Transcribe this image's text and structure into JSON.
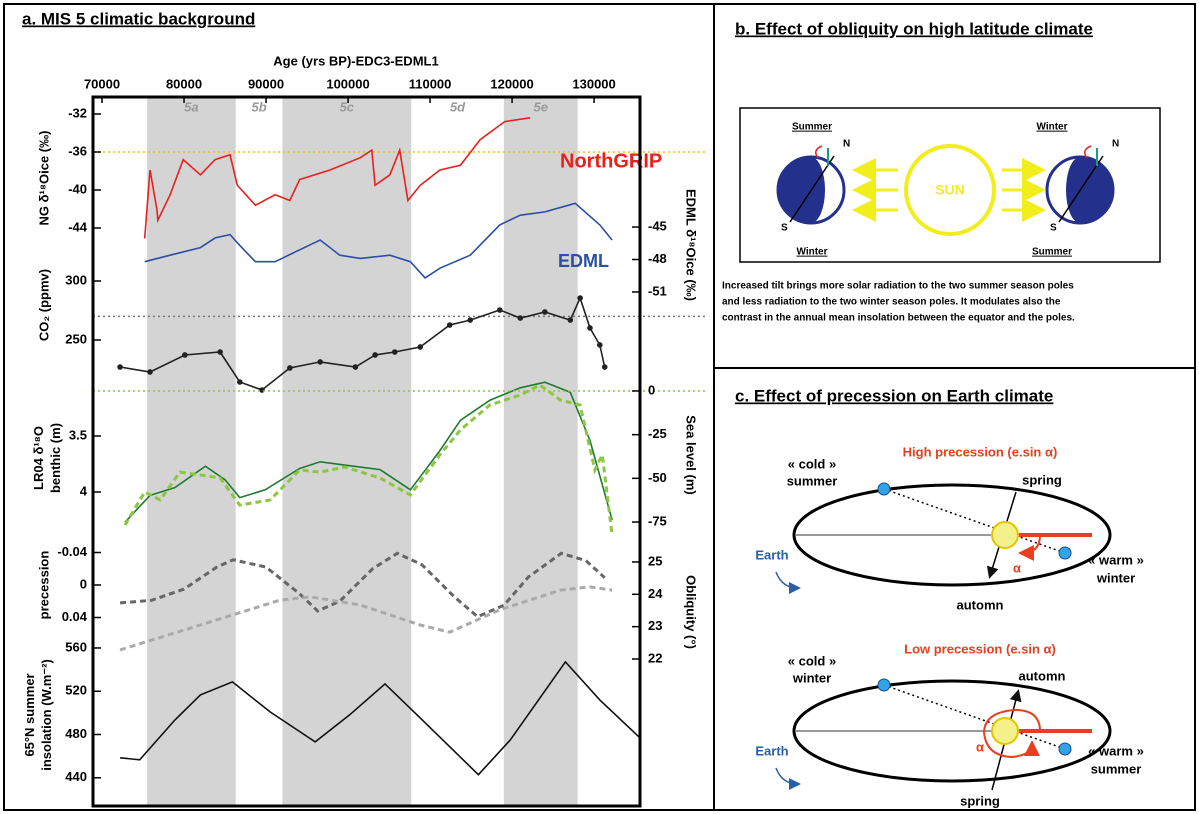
{
  "panel_a": {
    "title": "a. MIS 5 climatic background",
    "x_label": "Age (yrs BP)-EDC3-EDML1",
    "xlim": [
      68900,
      135600
    ],
    "xticks": [
      70000,
      80000,
      90000,
      100000,
      110000,
      120000,
      130000
    ],
    "stages": [
      {
        "label": "5a",
        "range": [
          75500,
          86300
        ],
        "shaded": true
      },
      {
        "label": "5b",
        "range": [
          86300,
          92000
        ],
        "shaded": false
      },
      {
        "label": "5c",
        "range": [
          92000,
          107700
        ],
        "shaded": true
      },
      {
        "label": "5d",
        "range": [
          107700,
          119000
        ],
        "shaded": false
      },
      {
        "label": "5e",
        "range": [
          119000,
          128000
        ],
        "shaded": true
      }
    ],
    "chart_data": [
      {
        "type": "line",
        "y_label": [
          "NG δ¹⁸Oice (‰)"
        ],
        "y_axis_side": "left",
        "ylim": [
          -46,
          -31
        ],
        "yticks": [
          -32,
          -36,
          -40,
          -44
        ],
        "reference_line": {
          "value": -36,
          "color": "#f0c000"
        },
        "series": [
          {
            "name": "NorthGRIP",
            "color": "#e8201e",
            "x": [
              75200,
              75850,
              76700,
              76800,
              78300,
              79900,
              82000,
              83800,
              85600,
              86500,
              88700,
              91100,
              92900,
              94100,
              97800,
              101500,
              102900,
              103300,
              105100,
              106300,
              107300,
              108800,
              111200,
              113700,
              116100,
              119100,
              122200
            ],
            "values": [
              -45.1,
              -37.9,
              -42.1,
              -43.2,
              -40.5,
              -36.8,
              -38.4,
              -36.8,
              -36.3,
              -39.5,
              -41.6,
              -40.5,
              -41.1,
              -38.9,
              -37.9,
              -36.6,
              -35.8,
              -39.5,
              -38.4,
              -35.8,
              -41.1,
              -39.5,
              -37.9,
              -37.4,
              -34.7,
              -32.8,
              -32.4
            ]
          }
        ]
      },
      {
        "type": "line",
        "y_label": [
          "EDML δ¹⁸Oice (‰)"
        ],
        "y_axis_side": "right",
        "ylim": [
          -53,
          -42
        ],
        "yticks": [
          -45,
          -48,
          -51
        ],
        "series": [
          {
            "name": "EDML",
            "color": "#2b4fa6",
            "x": [
              75200,
              78300,
              82000,
              83800,
              85600,
              86800,
              88700,
              91100,
              94100,
              96600,
              99000,
              101500,
              105100,
              107600,
              109400,
              111200,
              114900,
              118500,
              121000,
              124000,
              127700,
              130700,
              132200
            ],
            "values": [
              -48.2,
              -47.6,
              -46.9,
              -46.0,
              -45.7,
              -46.7,
              -48.2,
              -48.2,
              -47.1,
              -46.2,
              -47.6,
              -47.9,
              -47.6,
              -48.2,
              -49.7,
              -48.8,
              -47.6,
              -44.8,
              -43.9,
              -43.6,
              -42.8,
              -44.8,
              -46.2
            ]
          }
        ]
      },
      {
        "type": "line",
        "y_label": [
          "CO₂ (ppmv)"
        ],
        "y_axis_side": "left",
        "ylim": [
          205,
          310
        ],
        "yticks": [
          300,
          250
        ],
        "reference_line": {
          "value": 270,
          "color": "#777777"
        },
        "series": [
          {
            "color": "#222222",
            "markers": true,
            "x": [
              72200,
              75850,
              80100,
              84400,
              86800,
              89500,
              92900,
              96600,
              100900,
              103300,
              105700,
              108800,
              112400,
              114900,
              118500,
              121000,
              124000,
              127100,
              128300,
              129500,
              130700,
              131300
            ],
            "values": [
              227.1,
              222.9,
              237.3,
              239.8,
              214.4,
              207.6,
              226.3,
              231.4,
              227.1,
              237.3,
              239.8,
              244.1,
              262.7,
              266.9,
              275.4,
              268.6,
              273.7,
              266.9,
              285.6,
              260.2,
              245.8,
              227.1
            ]
          }
        ]
      },
      {
        "type": "line",
        "y_label": [
          "LR04 δ¹⁸O",
          "benthic (m)"
        ],
        "y_axis_side": "left",
        "ylim": [
          4.4,
          2.95
        ],
        "yticks": [
          3.5,
          4
        ],
        "series": [
          {
            "color": "#1f7a2e",
            "x": [
              72800,
              75850,
              78900,
              82600,
              85000,
              86800,
              89900,
              94100,
              96600,
              99600,
              103900,
              107600,
              111200,
              113700,
              117300,
              121000,
              124000,
              127100,
              129500,
              132200
            ],
            "values": [
              4.27,
              4.03,
              3.96,
              3.77,
              3.89,
              4.05,
              3.98,
              3.79,
              3.73,
              3.76,
              3.8,
              3.98,
              3.63,
              3.36,
              3.18,
              3.07,
              3.02,
              3.11,
              3.54,
              4.25
            ]
          }
        ]
      },
      {
        "type": "line",
        "y_label": [
          "Sea level (m)"
        ],
        "y_axis_side": "right",
        "ylim": [
          -85,
          10
        ],
        "yticks": [
          0,
          -25,
          -50,
          -75
        ],
        "reference_line": {
          "value": 0,
          "color": "#8dc63f"
        },
        "series": [
          {
            "color": "#8dc63f",
            "dashed": true,
            "x": [
              72800,
              75200,
              77100,
              79500,
              82000,
              84400,
              86800,
              90500,
              94100,
              96600,
              99600,
              103900,
              107600,
              111200,
              113700,
              117300,
              121000,
              123400,
              125900,
              128300,
              130100,
              131000,
              132200
            ],
            "values": [
              -76.7,
              -57.8,
              -62.4,
              -46.4,
              -48.1,
              -49.8,
              -65.3,
              -62.4,
              -45.2,
              -46.4,
              -43.5,
              -49.8,
              -59.5,
              -36.6,
              -22.3,
              -8.0,
              -2.3,
              3.4,
              -5.2,
              -8.0,
              -45.2,
              -36.6,
              -82.4
            ]
          }
        ]
      },
      {
        "type": "line",
        "y_label": [
          "precession"
        ],
        "y_axis_side": "left",
        "ylim": [
          0.065,
          -0.06
        ],
        "yticks": [
          -0.04,
          0,
          0.04
        ],
        "series": [
          {
            "color": "#666666",
            "dashed": true,
            "x": [
              72200,
              76000,
              80000,
              84000,
              86000,
              90000,
              94000,
              96300,
              99000,
              103000,
              106000,
              109000,
              113000,
              115800,
              119000,
              122000,
              126000,
              129000,
              131300
            ],
            "values": [
              0.022,
              0.019,
              0.005,
              -0.022,
              -0.031,
              -0.022,
              0.01,
              0.032,
              0.02,
              -0.02,
              -0.039,
              -0.025,
              0.015,
              0.039,
              0.025,
              -0.01,
              -0.039,
              -0.03,
              -0.009
            ]
          }
        ]
      },
      {
        "type": "line",
        "y_label": [
          "Obliquity (°)"
        ],
        "y_axis_side": "right",
        "ylim": [
          21.7,
          25.5
        ],
        "yticks": [
          25,
          24,
          23,
          22
        ],
        "series": [
          {
            "color": "#aaaaaa",
            "dashed": true,
            "x": [
              72200,
              82000,
              91700,
              95400,
              101500,
              108800,
              112400,
              118500,
              125900,
              129500,
              132200
            ],
            "values": [
              22.28,
              23.05,
              23.82,
              23.92,
              23.67,
              23.05,
              22.83,
              23.52,
              24.13,
              24.23,
              24.13
            ]
          }
        ]
      },
      {
        "type": "line",
        "y_label": [
          "65°N summer",
          "insolation (W.m⁻²)"
        ],
        "y_axis_side": "left",
        "ylim": [
          425,
          575
        ],
        "yticks": [
          560,
          520,
          480,
          440
        ],
        "series": [
          {
            "color": "#111111",
            "x": [
              72200,
              74600,
              78900,
              82000,
              85900,
              90500,
              96000,
              100200,
              104500,
              108800,
              115900,
              119800,
              126500,
              130700,
              135600
            ],
            "values": [
              458.5,
              456.6,
              493.5,
              516.6,
              528.6,
              500.9,
              473.2,
              498.2,
              526.8,
              495.4,
              442.8,
              475.1,
              547.1,
              512.0,
              476.9
            ]
          }
        ]
      }
    ]
  },
  "panel_b": {
    "title": "b. Effect of obliquity on high latitude climate",
    "labels": [
      "Summer",
      "N",
      "S",
      "Winter",
      "SUN",
      "Winter",
      "N",
      "S",
      "Summer"
    ],
    "caption": [
      "Increased tilt brings more solar radiation to the two summer season poles",
      "and less radiation to the two winter season poles. It modulates also the",
      "contrast in the annual mean insolation between the equator and the poles."
    ]
  },
  "panel_c": {
    "title": "c. Effect of precession on Earth climate",
    "high": {
      "title": "High precession (e.sin α)",
      "labels": [
        "« cold »",
        "summer",
        "spring",
        "Earth",
        "α",
        "« warm »",
        "winter",
        "automn"
      ]
    },
    "low": {
      "title": "Low precession (e.sin α)",
      "labels": [
        "« cold »",
        "winter",
        "automn",
        "Earth",
        "α",
        "« warm »",
        "summer",
        "spring"
      ]
    }
  }
}
